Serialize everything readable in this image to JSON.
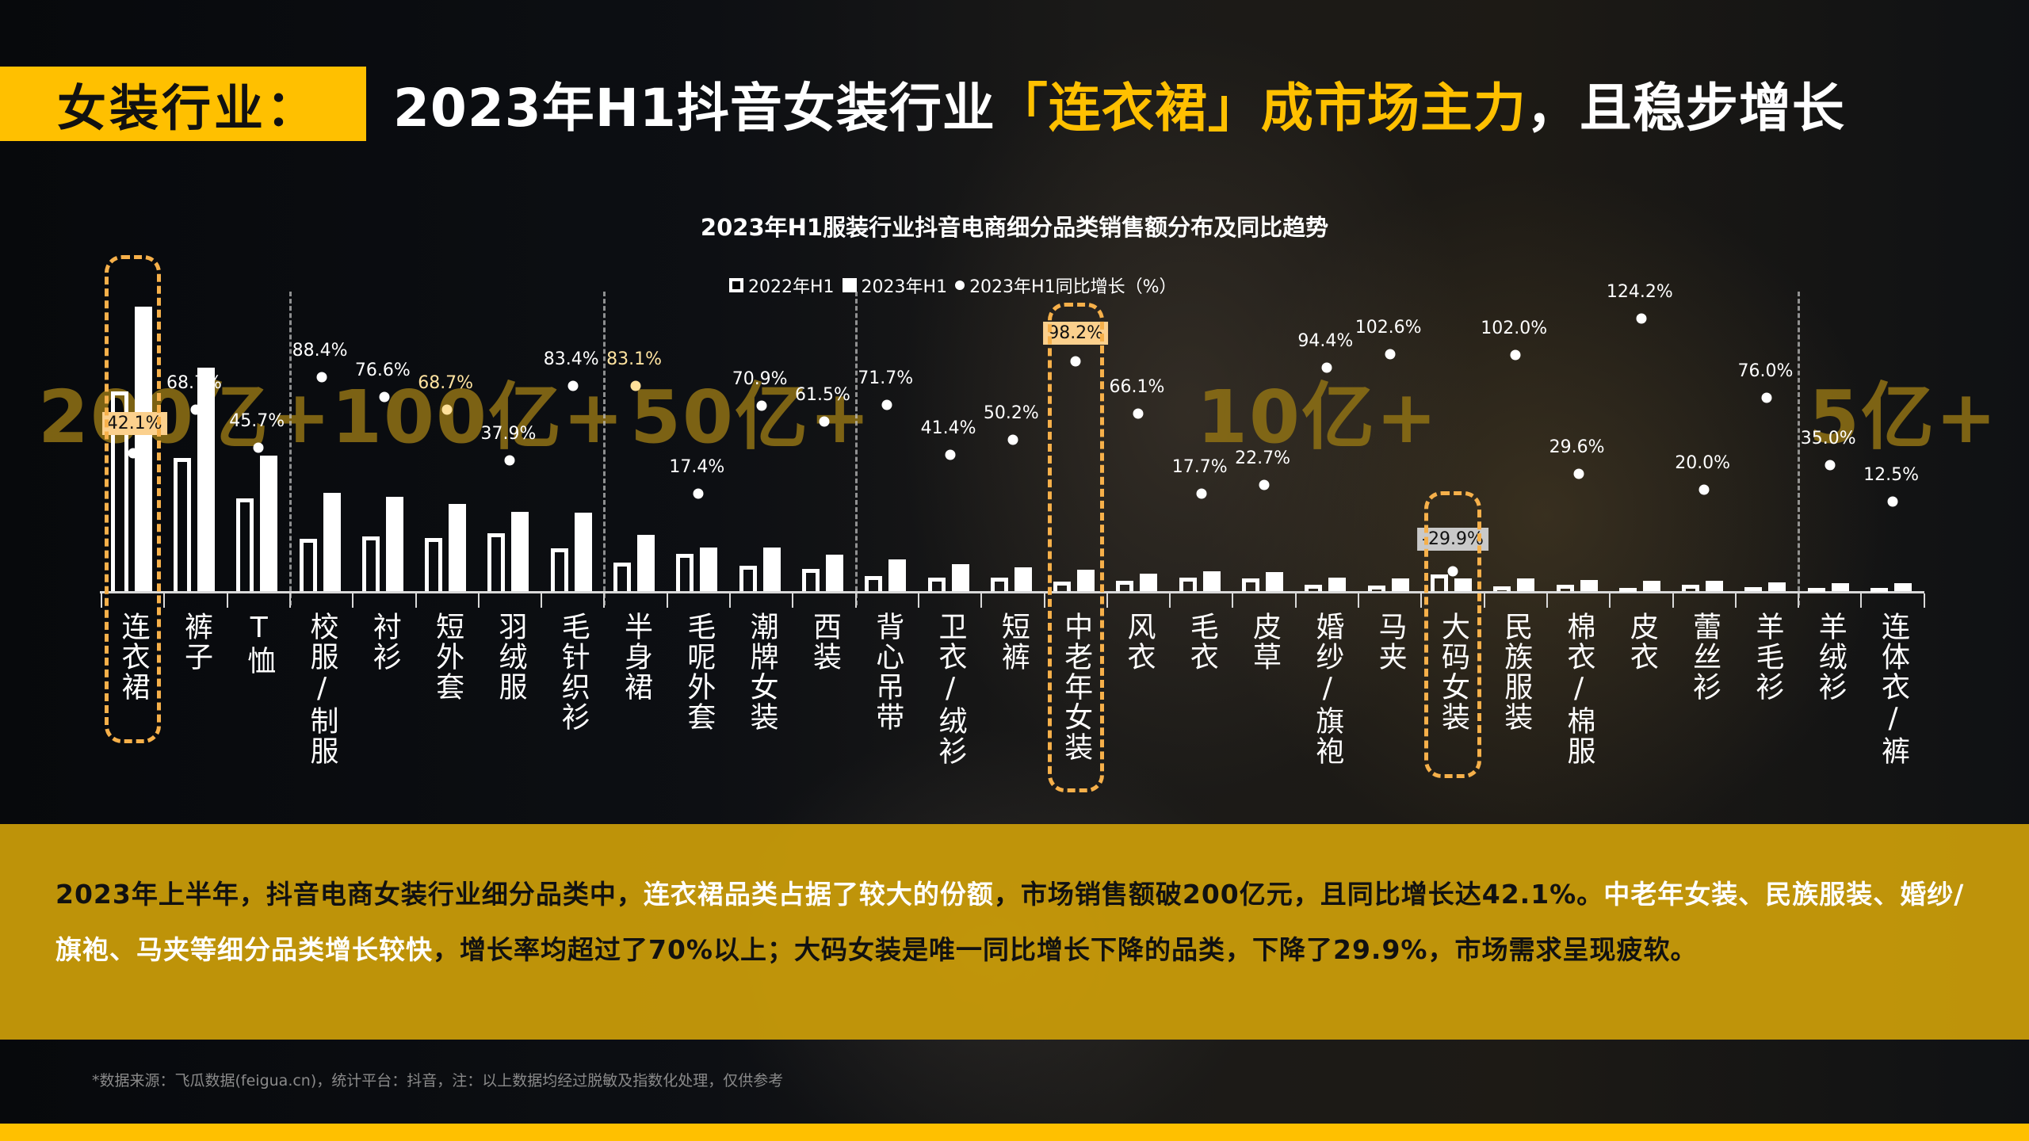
{
  "header": {
    "tag": "女装行业：",
    "title_parts": [
      "2023年H1抖音女装行业",
      "「连衣裙」成市场主力",
      "，且稳步增长"
    ]
  },
  "chart": {
    "title": "2023年H1服装行业抖音电商细分品类销售额分布及同比趋势",
    "legend": [
      "2022年H1",
      "2023年H1",
      "2023年H1同比增长（%）"
    ],
    "tiers": [
      "200亿+",
      "100亿+",
      "50亿+",
      "10亿+",
      "5亿+"
    ]
  },
  "chart_data": {
    "type": "bar",
    "title": "2023年H1服装行业抖音电商细分品类销售额分布及同比趋势",
    "xlabel": "",
    "ylabel": "",
    "legend_position": "top",
    "grid": false,
    "categories": [
      "连衣裙",
      "裤子",
      "T恤",
      "校服/制服",
      "衬衫",
      "短外套",
      "羽绒服",
      "毛针织衫",
      "半身裙",
      "毛呢外套",
      "潮牌女装",
      "西装",
      "背心吊带",
      "卫衣/绒衫",
      "短裤",
      "中老年女装",
      "风衣",
      "毛衣",
      "皮草",
      "婚纱/旗袍",
      "马夹",
      "大码女装",
      "民族服装",
      "棉衣/棉服",
      "皮衣",
      "蕾丝衫",
      "羊毛衫",
      "羊绒衫",
      "连体衣/裤"
    ],
    "series": [
      {
        "name": "2022年H1",
        "type": "bar",
        "relative_height": [
          252,
          168,
          117,
          66,
          69,
          67,
          73,
          54,
          36,
          47,
          32,
          28,
          19,
          17,
          17,
          12,
          13,
          17,
          16,
          8,
          7,
          21,
          6,
          8,
          4,
          8,
          5,
          4,
          4
        ]
      },
      {
        "name": "2023年H1",
        "type": "bar",
        "relative_height": [
          359,
          282,
          171,
          124,
          119,
          110,
          100,
          99,
          71,
          55,
          55,
          46,
          40,
          34,
          30,
          27,
          22,
          25,
          24,
          17,
          16,
          16,
          16,
          14,
          13,
          13,
          11,
          10,
          10
        ]
      },
      {
        "name": "2023年H1同比增长（%）",
        "type": "scatter",
        "values": [
          42.1,
          68.7,
          45.7,
          88.4,
          76.6,
          68.7,
          37.9,
          83.4,
          83.1,
          17.4,
          70.9,
          61.5,
          71.7,
          41.4,
          50.2,
          98.2,
          66.1,
          17.7,
          22.7,
          94.4,
          102.6,
          -29.9,
          102.0,
          29.6,
          124.2,
          20.0,
          76.0,
          35.0,
          12.5
        ]
      }
    ],
    "tier_groups": [
      {
        "label": "200亿+",
        "categories": [
          "连衣裙",
          "裤子",
          "T恤"
        ]
      },
      {
        "label": "100亿+",
        "categories": [
          "校服/制服",
          "衬衫",
          "短外套",
          "羽绒服",
          "毛针织衫"
        ]
      },
      {
        "label": "50亿+",
        "categories": [
          "半身裙",
          "毛呢外套",
          "潮牌女装",
          "西装"
        ]
      },
      {
        "label": "10亿+",
        "categories": [
          "背心吊带",
          "卫衣/绒衫",
          "短裤",
          "中老年女装",
          "风衣",
          "毛衣",
          "皮草",
          "婚纱/旗袍",
          "马夹",
          "大码女装",
          "民族服装",
          "棉衣/棉服",
          "皮衣",
          "蕾丝衫",
          "羊毛衫"
        ]
      },
      {
        "label": "5亿+",
        "categories": [
          "羊绒衫",
          "连体衣/裤"
        ]
      }
    ],
    "highlighted": [
      "连衣裙",
      "中老年女装",
      "大码女装"
    ]
  },
  "summary": {
    "parts": [
      {
        "text": "2023年上半年，抖音电商女装行业细分品类中，",
        "white": false
      },
      {
        "text": "连衣裙品类占据了较大的份额",
        "white": true
      },
      {
        "text": "，市场销售额破200亿元，且同比增长达42.1%。",
        "white": false
      },
      {
        "text": "中老年女装、民族服装、婚纱/旗袍、马夹等细分品类增长较快",
        "white": true
      },
      {
        "text": "，增长率均超过了70%以上；大码女装是唯一同比增长下降的品类，下降了29.9%，市场需求呈现疲软。",
        "white": false
      }
    ]
  },
  "footnote": "*数据来源：飞瓜数据(feigua.cn)，统计平台：抖音，注：以上数据均经过脱敏及指数化处理，仅供参考",
  "colors": {
    "accent": "#ffc000",
    "summary_bg": "#c89b0a",
    "highlight_box": "#f6b04a",
    "tier_text": "#8c6e14"
  }
}
